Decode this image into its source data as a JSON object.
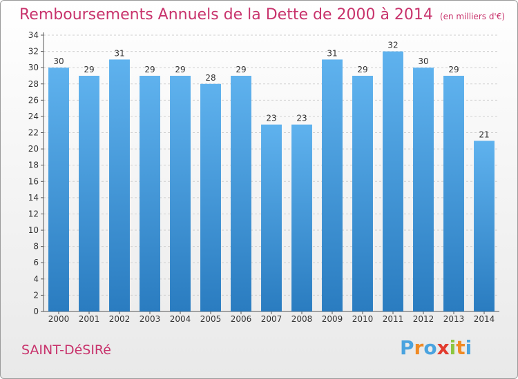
{
  "title": "Remboursements Annuels de la Dette de 2000 à 2014",
  "unit": "(en milliers d'€)",
  "commune": "SAINT-DéSIRé",
  "logo_text": "Proxiti",
  "colors": {
    "title": "#c8336c",
    "bar_top": "#5fb2ee",
    "bar_bottom": "#2a7cc0",
    "grid": "#cfcfcf",
    "logo": [
      "#4aa3df",
      "#f08a24",
      "#4aa3df",
      "#e23b2e",
      "#8cc63f",
      "#f08a24",
      "#4aa3df"
    ]
  },
  "chart_data": {
    "type": "bar",
    "title": "Remboursements Annuels de la Dette de 2000 à 2014",
    "categories": [
      "2000",
      "2001",
      "2002",
      "2003",
      "2004",
      "2005",
      "2006",
      "2007",
      "2008",
      "2009",
      "2010",
      "2011",
      "2012",
      "2013",
      "2014"
    ],
    "values": [
      30,
      29,
      31,
      29,
      29,
      28,
      29,
      23,
      23,
      31,
      29,
      32,
      30,
      29,
      21
    ],
    "ylim": [
      0,
      34
    ],
    "yticks": [
      0,
      2,
      4,
      6,
      8,
      10,
      12,
      14,
      16,
      18,
      20,
      22,
      24,
      26,
      28,
      30,
      32,
      34
    ],
    "grid": true,
    "data_labels": true
  }
}
